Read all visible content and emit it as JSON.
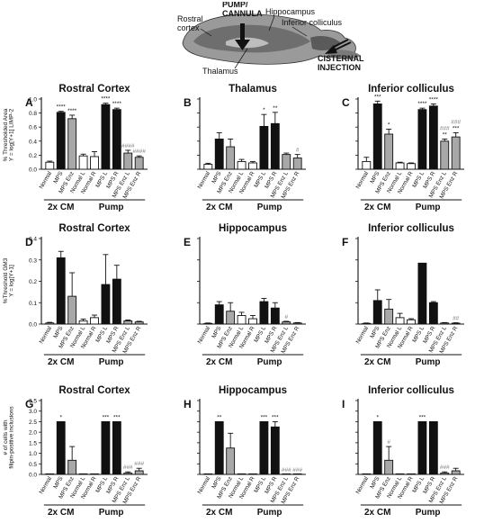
{
  "schematic": {
    "labels": {
      "rostral_cortex": "Rostral\ncortex",
      "pump_cannula": "PUMP/\nCANNULA",
      "hippocampus": "Hippocampus",
      "inferior_colliculus": "Inferior colliculus",
      "thalamus": "Thalamus",
      "cisternal_injection": "CISTERNAL\nINJECTION"
    }
  },
  "row_ylabels": [
    "% Thresholded Area\nY = log[Y+1] LIMP-2",
    "%Threshold GM3\nY = log[Y+1]",
    "# of cells with\nfilipin-positive inclusions"
  ],
  "colors": {
    "black": "#111111",
    "gray": "#a8a8a8",
    "white": "#ffffff"
  },
  "chart_data": [
    {
      "letter": "A",
      "title": "Rostral Cortex",
      "row": 0,
      "col": 0,
      "type": "bar",
      "ylim": [
        0,
        1.0
      ],
      "yticks": [
        "0.0",
        "0.2",
        "0.4",
        "0.6",
        "0.8",
        "1.0"
      ],
      "categories": [
        "Normal",
        "MPS",
        "MPS Enz",
        "Normal L",
        "Normal R",
        "MPS L",
        "MPS R",
        "MPS Enz L",
        "MPS Enz R"
      ],
      "fills": [
        "white",
        "black",
        "gray",
        "white",
        "white",
        "black",
        "black",
        "gray",
        "gray"
      ],
      "values": [
        0.1,
        0.81,
        0.72,
        0.19,
        0.18,
        0.92,
        0.85,
        0.23,
        0.17
      ],
      "errors": [
        0.015,
        0.015,
        0.05,
        0.025,
        0.07,
        0.02,
        0.02,
        0.04,
        0.02
      ],
      "annotations": [
        "",
        "****",
        "****",
        "",
        "",
        "****",
        "****",
        "####",
        "####"
      ],
      "groups": [
        {
          "label": "2x CM",
          "start": 0,
          "end": 2
        },
        {
          "label": "Pump",
          "start": 3,
          "end": 8
        }
      ]
    },
    {
      "letter": "B",
      "title": "Thalamus",
      "row": 0,
      "col": 1,
      "type": "bar",
      "ylim": [
        0,
        1.0
      ],
      "yticks": [],
      "categories": [
        "Normal",
        "MPS",
        "MPS Enz",
        "Normal L",
        "Normal R",
        "MPS L",
        "MPS R",
        "MPS Enz L",
        "MPS Enz R"
      ],
      "fills": [
        "white",
        "black",
        "gray",
        "white",
        "white",
        "black",
        "black",
        "gray",
        "gray"
      ],
      "values": [
        0.07,
        0.43,
        0.32,
        0.11,
        0.09,
        0.61,
        0.65,
        0.21,
        0.16
      ],
      "errors": [
        0.015,
        0.09,
        0.11,
        0.03,
        0.02,
        0.17,
        0.16,
        0.02,
        0.05
      ],
      "annotations": [
        "",
        "",
        "",
        "",
        "",
        "*",
        "**",
        "",
        "#"
      ],
      "groups": [
        {
          "label": "2x CM",
          "start": 0,
          "end": 2
        },
        {
          "label": "Pump",
          "start": 3,
          "end": 8
        }
      ]
    },
    {
      "letter": "C",
      "title": "Inferior colliculus",
      "row": 0,
      "col": 2,
      "type": "bar",
      "ylim": [
        0,
        1.0
      ],
      "yticks": [],
      "categories": [
        "Normal",
        "MPS",
        "MPS Enz",
        "Normal L",
        "Normal R",
        "MPS L",
        "MPS R",
        "MPS Enz L",
        "MPS Enz R"
      ],
      "fills": [
        "white",
        "black",
        "gray",
        "white",
        "white",
        "black",
        "black",
        "gray",
        "gray"
      ],
      "values": [
        0.11,
        0.93,
        0.5,
        0.09,
        0.08,
        0.85,
        0.9,
        0.4,
        0.46
      ],
      "errors": [
        0.06,
        0.04,
        0.07,
        0.01,
        0.01,
        0.02,
        0.03,
        0.03,
        0.06
      ],
      "annotations": [
        "",
        "***",
        "*",
        "",
        "",
        "****",
        "****",
        "###\n**",
        "###\n***"
      ],
      "groups": [
        {
          "label": "2x CM",
          "start": 0,
          "end": 2
        },
        {
          "label": "Pump",
          "start": 3,
          "end": 8
        }
      ]
    },
    {
      "letter": "D",
      "title": "Rostral Cortex",
      "row": 1,
      "col": 0,
      "type": "bar",
      "ylim": [
        0,
        0.4
      ],
      "yticks": [
        "0.0",
        "0.1",
        "0.2",
        "0.3",
        "0.4"
      ],
      "categories": [
        "Normal",
        "MPS",
        "MPS Enz",
        "Normal L",
        "Normal R",
        "MPS L",
        "MPS R",
        "MPS Enz L",
        "MPS Enz R"
      ],
      "fills": [
        "white",
        "black",
        "gray",
        "white",
        "white",
        "black",
        "black",
        "gray",
        "gray"
      ],
      "values": [
        0.005,
        0.31,
        0.13,
        0.015,
        0.03,
        0.185,
        0.21,
        0.015,
        0.01
      ],
      "errors": [
        0.003,
        0.03,
        0.11,
        0.008,
        0.012,
        0.14,
        0.065,
        0.004,
        0.003
      ],
      "annotations": [
        "",
        "",
        "",
        "",
        "",
        "",
        "",
        "",
        ""
      ],
      "groups": [
        {
          "label": "2x CM",
          "start": 0,
          "end": 2
        },
        {
          "label": "Pump",
          "start": 3,
          "end": 8
        }
      ]
    },
    {
      "letter": "E",
      "title": "Hippocampus",
      "row": 1,
      "col": 1,
      "type": "bar",
      "ylim": [
        0,
        0.4
      ],
      "yticks": [],
      "categories": [
        "Normal",
        "MPS",
        "MPS Enz",
        "Normal L",
        "Normal R",
        "MPS L",
        "MPS R",
        "MPS Enz L",
        "MPS Enz R"
      ],
      "fills": [
        "white",
        "black",
        "gray",
        "white",
        "white",
        "black",
        "black",
        "gray",
        "gray"
      ],
      "values": [
        0.003,
        0.09,
        0.06,
        0.04,
        0.025,
        0.105,
        0.075,
        0.01,
        0.005
      ],
      "errors": [
        0.002,
        0.015,
        0.04,
        0.015,
        0.015,
        0.015,
        0.025,
        0.003,
        0.002
      ],
      "annotations": [
        "",
        "",
        "",
        "",
        "",
        "",
        "",
        "#",
        ""
      ],
      "groups": [
        {
          "label": "2x CM",
          "start": 0,
          "end": 2
        },
        {
          "label": "Pump",
          "start": 3,
          "end": 8
        }
      ]
    },
    {
      "letter": "F",
      "title": "Inferior colliculus",
      "row": 1,
      "col": 2,
      "type": "bar",
      "ylim": [
        0,
        0.4
      ],
      "yticks": [],
      "categories": [
        "Normal",
        "MPS",
        "MPS Enz",
        "Normal L",
        "Normal R",
        "MPS L",
        "MPS R",
        "MPS Enz L",
        "MPS Enz R"
      ],
      "fills": [
        "white",
        "black",
        "gray",
        "white",
        "white",
        "black",
        "black",
        "gray",
        "gray"
      ],
      "values": [
        0.003,
        0.11,
        0.07,
        0.03,
        0.02,
        0.285,
        0.1,
        0.005,
        0.004
      ],
      "errors": [
        0.002,
        0.05,
        0.045,
        0.02,
        0.005,
        0,
        0.005,
        0.002,
        0.002
      ],
      "annotations": [
        "",
        "",
        "",
        "",
        "",
        "",
        "",
        "",
        "##"
      ],
      "groups": [
        {
          "label": "2x CM",
          "start": 0,
          "end": 2
        },
        {
          "label": "Pump",
          "start": 3,
          "end": 8
        }
      ]
    },
    {
      "letter": "G",
      "title": "Rostral Cortex",
      "row": 2,
      "col": 0,
      "type": "bar",
      "ylim": [
        0,
        3.5
      ],
      "yticks": [
        "0.0",
        "0.5",
        "1.0",
        "1.5",
        "2.0",
        "2.5",
        "3.0",
        "3.5"
      ],
      "categories": [
        "Normal",
        "MPS",
        "MPS Enz",
        "Normal L",
        "Normal R",
        "MPS L",
        "MPS R",
        "MPS Enz L",
        "MPS Enz R"
      ],
      "fills": [
        "white",
        "black",
        "gray",
        "white",
        "white",
        "black",
        "black",
        "gray",
        "gray"
      ],
      "values": [
        0,
        2.5,
        0.67,
        0,
        0,
        2.5,
        2.5,
        0.06,
        0.17
      ],
      "errors": [
        0,
        0,
        0.65,
        0,
        0,
        0,
        0,
        0.06,
        0.12
      ],
      "annotations": [
        "",
        "*",
        "",
        "",
        "",
        "***",
        "***",
        "###",
        "###"
      ],
      "groups": [
        {
          "label": "2x CM",
          "start": 0,
          "end": 2
        },
        {
          "label": "Pump",
          "start": 3,
          "end": 8
        }
      ]
    },
    {
      "letter": "H",
      "title": "Hippocampus",
      "row": 2,
      "col": 1,
      "type": "bar",
      "ylim": [
        0,
        3.5
      ],
      "yticks": [],
      "categories": [
        "Normal",
        "MPS",
        "MPS Enz",
        "Normal L",
        "Normal R",
        "MPS L",
        "MPS R",
        "MPS Enz L",
        "MPS Enz R"
      ],
      "fills": [
        "white",
        "black",
        "gray",
        "white",
        "white",
        "black",
        "black",
        "gray",
        "gray"
      ],
      "values": [
        0,
        2.5,
        1.25,
        0,
        0,
        2.5,
        2.25,
        0,
        0
      ],
      "errors": [
        0,
        0,
        0.7,
        0,
        0,
        0,
        0.25,
        0,
        0
      ],
      "annotations": [
        "",
        "**",
        "",
        "",
        "",
        "***",
        "***",
        "###",
        "###"
      ],
      "groups": [
        {
          "label": "2x CM",
          "start": 0,
          "end": 2
        },
        {
          "label": "Pump",
          "start": 3,
          "end": 8
        }
      ]
    },
    {
      "letter": "I",
      "title": "Inferior colliculus",
      "row": 2,
      "col": 2,
      "type": "bar",
      "ylim": [
        0,
        3.5
      ],
      "yticks": [],
      "categories": [
        "Normal",
        "MPS",
        "MPS Enz",
        "Normal L",
        "Normal R",
        "MPS L",
        "MPS R",
        "MPS Enz L",
        "MPS Enz R"
      ],
      "fills": [
        "white",
        "black",
        "gray",
        "white",
        "white",
        "black",
        "black",
        "gray",
        "gray"
      ],
      "values": [
        0,
        2.5,
        0.67,
        0,
        0,
        2.5,
        2.5,
        0.06,
        0.17
      ],
      "errors": [
        0,
        0,
        0.65,
        0,
        0,
        0,
        0,
        0.06,
        0.12
      ],
      "annotations": [
        "",
        "*",
        "#",
        "",
        "",
        "***",
        "",
        "###",
        ""
      ],
      "groups": [
        {
          "label": "2x CM",
          "start": 0,
          "end": 2
        },
        {
          "label": "Pump",
          "start": 3,
          "end": 8
        }
      ]
    }
  ]
}
